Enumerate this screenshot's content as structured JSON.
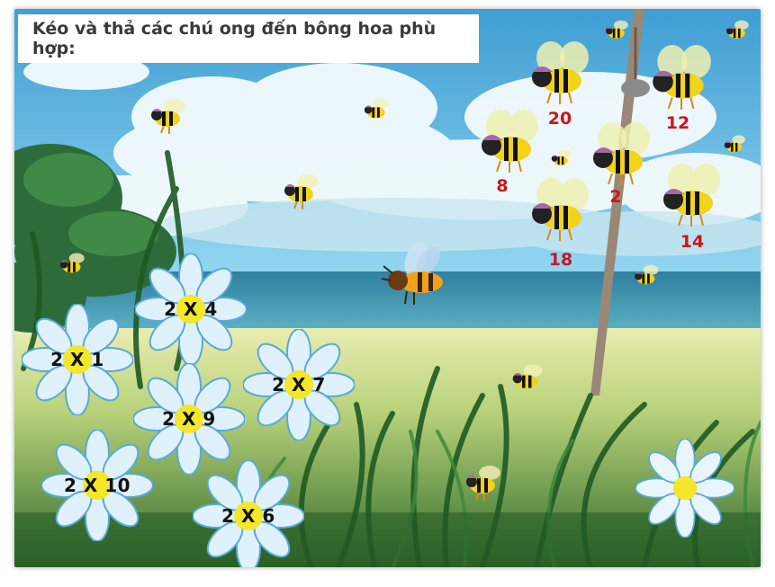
{
  "instruction": "Kéo và thả các chú ong đến bông hoa phù hợp:",
  "answer_bees": [
    {
      "id": "bee-20",
      "label": "20"
    },
    {
      "id": "bee-12",
      "label": "12"
    },
    {
      "id": "bee-8",
      "label": "8"
    },
    {
      "id": "bee-2",
      "label": "2"
    },
    {
      "id": "bee-14",
      "label": "14"
    },
    {
      "id": "bee-18",
      "label": "18"
    }
  ],
  "flowers": [
    {
      "id": "flower-2x4",
      "label": "2 X 4"
    },
    {
      "id": "flower-2x1",
      "label": "2 X 1"
    },
    {
      "id": "flower-2x7",
      "label": "2 X 7"
    },
    {
      "id": "flower-2x9",
      "label": "2 X 9"
    },
    {
      "id": "flower-2x10",
      "label": "2 X 10"
    },
    {
      "id": "flower-2x6",
      "label": "2 X 6"
    }
  ],
  "colors": {
    "number_red": "#c8161c",
    "petal": "#dff1fb",
    "petal_edge": "#5aa9d8",
    "center": "#f4e72a",
    "sky": "#6fc3e6"
  }
}
